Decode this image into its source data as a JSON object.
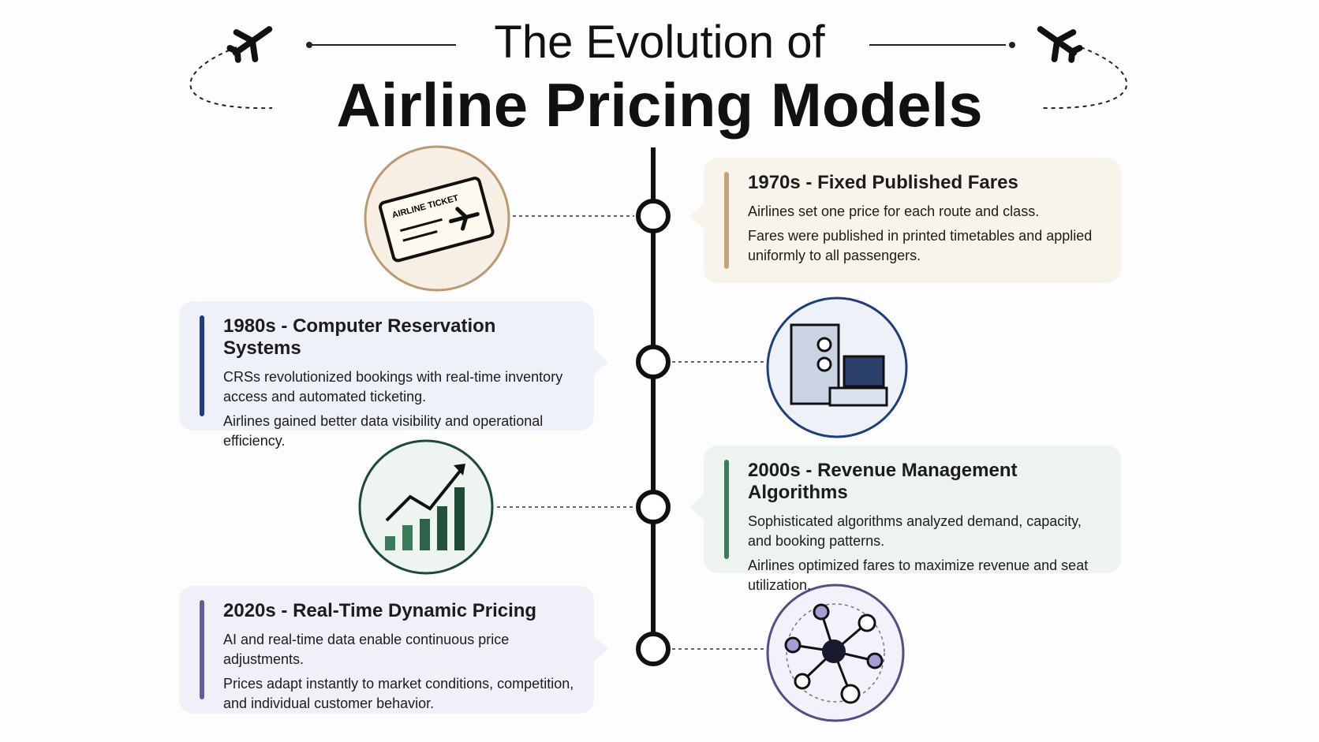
{
  "header": {
    "title_line1": "The Evolution of",
    "title_line2": "Airline Pricing Models"
  },
  "events": [
    {
      "title": "1970s - Fixed Published Fares",
      "paragraphs": [
        "Airlines set one price for each route and class.",
        "Fares were published in printed timetables and applied uniformly to all passengers."
      ],
      "icon_label": "AIRLINE TICKET"
    },
    {
      "title": "1980s - Computer Reservation Systems",
      "paragraphs": [
        "CRSs revolutionized bookings with real-time inventory access and automated ticketing.",
        "Airlines gained better data visibility and operational efficiency."
      ]
    },
    {
      "title": "2000s - Revenue Management Algorithms",
      "paragraphs": [
        "Sophisticated algorithms analyzed demand, capacity, and booking patterns.",
        "Airlines optimized fares to maximize revenue and seat utilization."
      ]
    },
    {
      "title": "2020s - Real-Time Dynamic Pricing",
      "paragraphs": [
        "AI and real-time data enable continuous price adjustments.",
        "Prices adapt instantly to market conditions, competition, and individual customer behavior."
      ]
    }
  ]
}
